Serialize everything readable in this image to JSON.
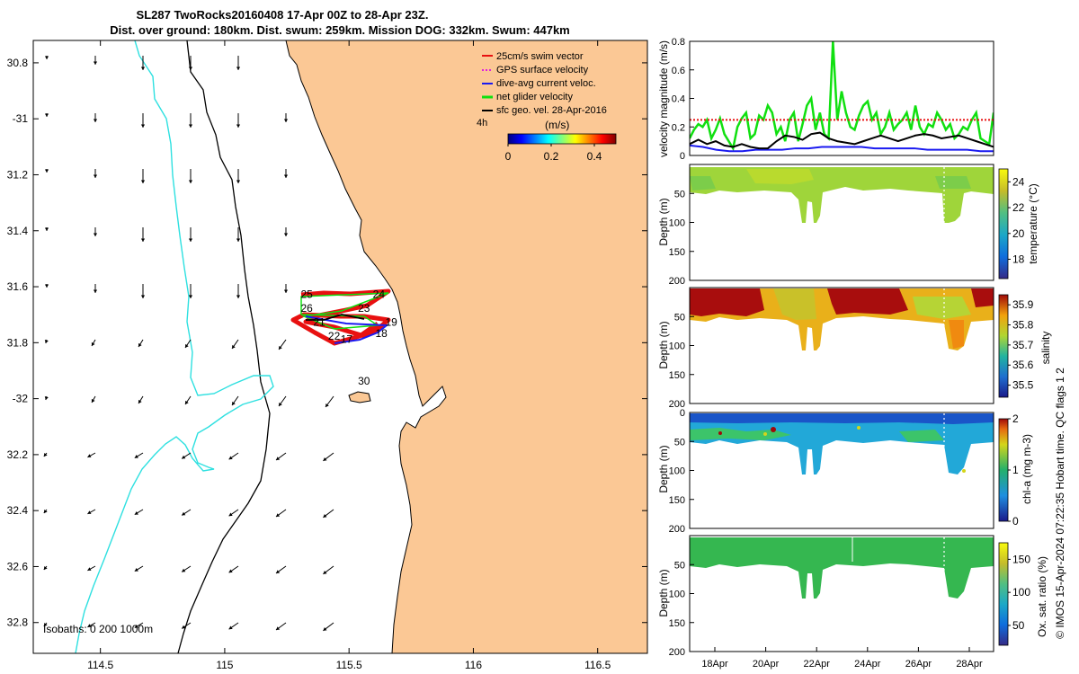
{
  "title": {
    "line1": "SL287 TwoRocks20160408 17-Apr 00Z to 28-Apr 23Z.",
    "line2": "Dist. over ground: 180km. Dist. swum: 259km. Mission DOG: 332km. Swum: 447km"
  },
  "credit": "© IMOS 15-Apr-2024 07:22:35 Hobart time. QC flags 1  2",
  "colors": {
    "land": "#fbc895",
    "coast": "#000000",
    "isobath_200": "#2ee0e0",
    "swim": "#e81010",
    "gps": "#e020e0",
    "dive": "#1a1af0",
    "net": "#10e010",
    "sfc": "#000000"
  },
  "chart_data": [
    {
      "type": "map",
      "x": [
        114.5,
        115,
        115.5,
        116,
        116.5
      ],
      "y": [
        30.8,
        -31,
        31.2,
        31.4,
        31.6,
        31.8,
        -32,
        32.2,
        32.4,
        32.6,
        32.8
      ],
      "xlim": [
        114.23,
        116.7
      ],
      "ylim": [
        -32.91,
        -30.72
      ],
      "isobath_label": "Isobaths: 0   200  1000m",
      "legend": [
        {
          "label": "25cm/s swim vector",
          "color": "#e81010"
        },
        {
          "label": "GPS surface velocity",
          "color": "#e020e0"
        },
        {
          "label": "dive-avg current veloc.",
          "color": "#1a1af0"
        },
        {
          "label": "net glider velocity",
          "color": "#10e010"
        },
        {
          "label": "sfc geo. vel. 28-Apr-2016",
          "color": "#000000"
        }
      ],
      "legend_placement": "top-right",
      "scale_label": "4h",
      "colorbar": {
        "title": "(m/s)",
        "ticks": [
          "0",
          "0.2",
          "0.4"
        ],
        "range": [
          0,
          0.5
        ]
      },
      "track_day_labels": [
        {
          "day": "24",
          "lon": 115.62,
          "lat": -31.64
        },
        {
          "day": "25",
          "lon": 115.33,
          "lat": -31.64
        },
        {
          "day": "26",
          "lon": 115.33,
          "lat": -31.69
        },
        {
          "day": "23",
          "lon": 115.56,
          "lat": -31.69
        },
        {
          "day": "21",
          "lon": 115.38,
          "lat": -31.74
        },
        {
          "day": "19",
          "lon": 115.67,
          "lat": -31.74
        },
        {
          "day": "18",
          "lon": 115.63,
          "lat": -31.78
        },
        {
          "day": "22",
          "lon": 115.44,
          "lat": -31.79
        },
        {
          "day": "17",
          "lon": 115.49,
          "lat": -31.8
        },
        {
          "day": "30",
          "lon": 115.56,
          "lat": -31.95
        }
      ]
    },
    {
      "type": "line",
      "ylabel": "velocity magnitude (m/s)",
      "ylim": [
        0,
        0.8
      ],
      "yticks": [
        "0",
        "0.2",
        "0.4",
        "0.6",
        "0.8"
      ],
      "series": [
        {
          "color": "#10e010",
          "values": [
            0.12,
            0.18,
            0.22,
            0.2,
            0.25,
            0.12,
            0.18,
            0.26,
            0.15,
            0.1,
            0.05,
            0.2,
            0.26,
            0.3,
            0.12,
            0.15,
            0.28,
            0.25,
            0.35,
            0.3,
            0.15,
            0.2,
            0.1,
            0.25,
            0.3,
            0.1,
            0.22,
            0.35,
            0.4,
            0.18,
            0.3,
            0.15,
            0.12,
            0.8,
            0.25,
            0.45,
            0.3,
            0.2,
            0.18,
            0.28,
            0.35,
            0.38,
            0.25,
            0.3,
            0.15,
            0.2,
            0.3,
            0.18,
            0.22,
            0.25,
            0.3,
            0.18,
            0.35,
            0.2,
            0.15,
            0.22,
            0.2,
            0.3,
            0.25,
            0.18,
            0.22,
            0.12,
            0.15,
            0.2,
            0.18,
            0.25,
            0.3,
            0.12,
            0.1,
            0.08,
            0.3
          ]
        },
        {
          "color": "#e81010",
          "values": [
            0.25,
            0.25,
            0.25,
            0.25,
            0.25,
            0.25,
            0.25,
            0.25,
            0.25,
            0.25,
            0.25,
            0.25
          ]
        },
        {
          "color": "#1a1af0",
          "values": [
            0.07,
            0.06,
            0.04,
            0.03,
            0.03,
            0.04,
            0.04,
            0.04,
            0.05,
            0.05,
            0.06,
            0.06,
            0.06,
            0.06,
            0.05,
            0.05,
            0.05,
            0.05,
            0.04,
            0.04,
            0.04,
            0.04,
            0.03,
            0.03
          ]
        },
        {
          "color": "#000000",
          "values": [
            0.08,
            0.11,
            0.08,
            0.1,
            0.07,
            0.06,
            0.08,
            0.06,
            0.05,
            0.05,
            0.1,
            0.14,
            0.13,
            0.11,
            0.15,
            0.16,
            0.12,
            0.1,
            0.09,
            0.08,
            0.1,
            0.12,
            0.14,
            0.12,
            0.1,
            0.12,
            0.14,
            0.15,
            0.14,
            0.12,
            0.13,
            0.14,
            0.12,
            0.1,
            0.08,
            0.06
          ]
        }
      ]
    },
    {
      "type": "heatmap",
      "ylabel": "Depth (m)",
      "clabel": "temperature (°C)",
      "ylim": [
        200,
        0
      ],
      "yticks": [
        "50",
        "100",
        "150",
        "200"
      ],
      "cticks": [
        "18",
        "20",
        "22",
        "24"
      ],
      "crange": [
        16.5,
        25
      ]
    },
    {
      "type": "heatmap",
      "ylabel": "Depth (m)",
      "clabel": "salinity",
      "ylim": [
        200,
        0
      ],
      "yticks": [
        "50",
        "100",
        "150",
        "200"
      ],
      "cticks": [
        "35.5",
        "35.6",
        "35.7",
        "35.8",
        "35.9"
      ],
      "crange": [
        35.44,
        35.95
      ]
    },
    {
      "type": "heatmap",
      "ylabel": "Depth (m)",
      "clabel": "chl-a (mg m-3)",
      "ylim": [
        200,
        0
      ],
      "yticks": [
        "0",
        "50",
        "100",
        "150",
        "200"
      ],
      "cticks": [
        "0",
        "1",
        "2"
      ],
      "crange": [
        0,
        2
      ]
    },
    {
      "type": "heatmap",
      "ylabel": "Depth (m)",
      "clabel": "Ox. sat. ratio (%)",
      "ylim": [
        200,
        0
      ],
      "yticks": [
        "50",
        "100",
        "150",
        "200"
      ],
      "cticks": [
        "50",
        "100",
        "150"
      ],
      "crange": [
        20,
        175
      ],
      "x": [
        "18Apr",
        "20Apr",
        "22Apr",
        "24Apr",
        "26Apr",
        "28Apr"
      ]
    }
  ]
}
